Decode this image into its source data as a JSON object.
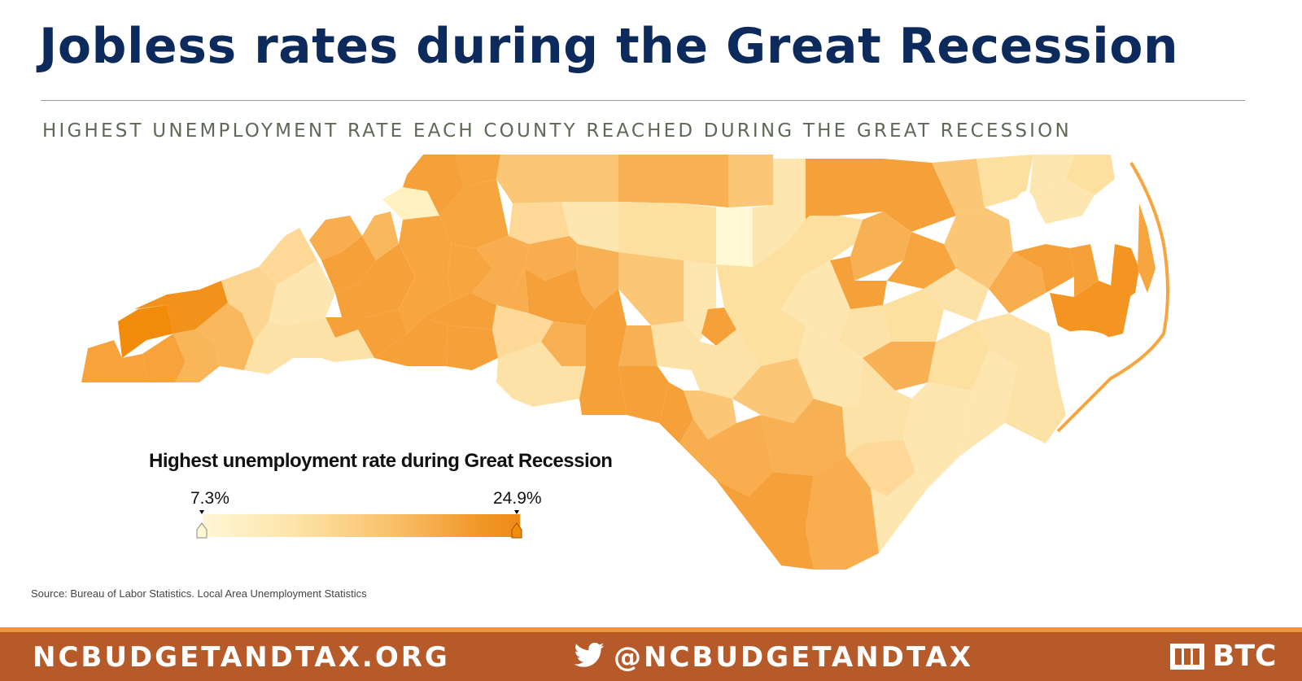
{
  "header": {
    "title": "Jobless rates during the Great Recession",
    "subtitle": "HIGHEST UNEMPLOYMENT RATE EACH COUNTY REACHED DURING THE GREAT RECESSION"
  },
  "map": {
    "region": "North Carolina counties",
    "color_scale": {
      "low_color": "#fff8d2",
      "high_color": "#f28a0a"
    }
  },
  "legend": {
    "title": "Highest unemployment rate during Great Recession",
    "min_label": "7.3%",
    "max_label": "24.9%",
    "min_value": 7.3,
    "max_value": 24.9
  },
  "source": "Source: Bureau of Labor Statistics. Local Area Unemployment Statistics",
  "footer": {
    "website": "NCBUDGETANDTAX.ORG",
    "twitter_handle": "@NCBUDGETANDTAX",
    "twitter_icon": "twitter-bird-icon",
    "logo_text": "BTC",
    "logo_icon": "btc-logo-icon"
  }
}
